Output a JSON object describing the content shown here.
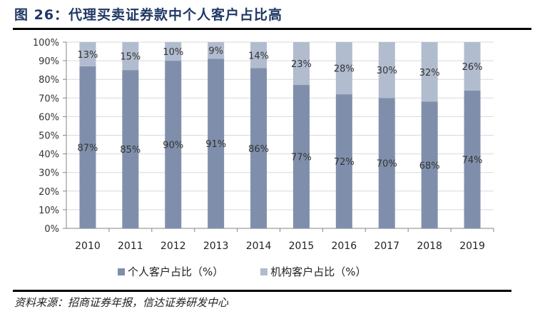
{
  "header": {
    "title": "图 26：代理买卖证券款中个人客户占比高"
  },
  "legend": {
    "items": [
      {
        "label": "个人客户占比（%）",
        "color": "#7f8fab"
      },
      {
        "label": "机构客户占比（%）",
        "color": "#b1bccf"
      }
    ]
  },
  "footer": {
    "source": "资料来源：招商证券年报，信达证券研发中心"
  },
  "chart_data": {
    "type": "bar",
    "stacked": true,
    "percent_stacked": true,
    "title": "代理买卖证券款中个人客户占比高",
    "xlabel": "",
    "ylabel": "",
    "ylim": [
      0,
      100
    ],
    "yticks": [
      "0%",
      "10%",
      "20%",
      "30%",
      "40%",
      "50%",
      "60%",
      "70%",
      "80%",
      "90%",
      "100%"
    ],
    "grid": true,
    "legend_position": "bottom",
    "categories": [
      "2010",
      "2011",
      "2012",
      "2013",
      "2014",
      "2015",
      "2016",
      "2017",
      "2018",
      "2019"
    ],
    "series": [
      {
        "name": "个人客户占比（%）",
        "color": "#7f8fab",
        "values": [
          87,
          85,
          90,
          91,
          86,
          77,
          72,
          70,
          68,
          74
        ]
      },
      {
        "name": "机构客户占比（%）",
        "color": "#b1bccf",
        "values": [
          13,
          15,
          10,
          9,
          14,
          23,
          28,
          30,
          32,
          26
        ]
      }
    ]
  }
}
